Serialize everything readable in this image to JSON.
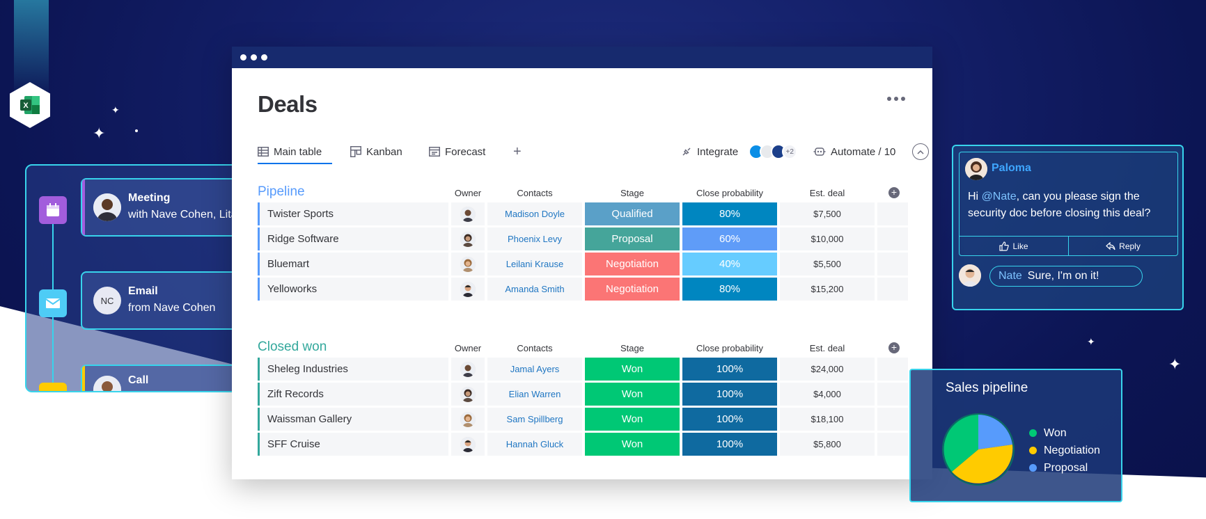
{
  "colors": {
    "accent_cyan": "#38d4ec",
    "brand_blue": "#0073ea",
    "pipeline": "#579bfc",
    "closed_won": "#33a89c",
    "stage_qualified": "#5aa0c8",
    "stage_proposal": "#45a59a",
    "stage_negotiation": "#fb7575",
    "stage_won": "#00c875",
    "prob_80": "#0086c0",
    "prob_60": "#5f9cf8",
    "prob_40": "#66ccff",
    "prob_100": "#0f6aa0"
  },
  "timeline": {
    "items": [
      {
        "type": "meeting",
        "icon": "calendar-icon",
        "title": "Meeting",
        "subtitle": "with Nave Cohen, Lita"
      },
      {
        "type": "email",
        "icon": "envelope-icon",
        "title": "Email",
        "subtitle": "from Nave Cohen",
        "initials": "NC"
      },
      {
        "type": "call",
        "icon": "phone-icon",
        "title": "Call",
        "subtitle": ""
      }
    ]
  },
  "board": {
    "title": "Deals",
    "tabs": [
      {
        "label": "Main table",
        "icon": "table-icon",
        "active": true
      },
      {
        "label": "Kanban",
        "icon": "kanban-icon"
      },
      {
        "label": "Forecast",
        "icon": "forecast-icon"
      }
    ],
    "add_tab": "+",
    "integrate": {
      "label": "Integrate",
      "more_count": "+2"
    },
    "automate": {
      "label": "Automate / 10"
    }
  },
  "columns": {
    "owner": "Owner",
    "contacts": "Contacts",
    "stage": "Stage",
    "probability": "Close probability",
    "deal": "Est. deal"
  },
  "groups": [
    {
      "title": "Pipeline",
      "rows": [
        {
          "name": "Twister Sports",
          "contact": "Madison Doyle",
          "stage": "Qualified",
          "probability": "80%",
          "deal": "$7,500"
        },
        {
          "name": "Ridge Software",
          "contact": "Phoenix Levy",
          "stage": "Proposal",
          "probability": "60%",
          "deal": "$10,000"
        },
        {
          "name": "Bluemart",
          "contact": "Leilani Krause",
          "stage": "Negotiation",
          "probability": "40%",
          "deal": "$5,500"
        },
        {
          "name": "Yelloworks",
          "contact": "Amanda Smith",
          "stage": "Negotiation",
          "probability": "80%",
          "deal": "$15,200"
        }
      ]
    },
    {
      "title": "Closed won",
      "rows": [
        {
          "name": "Sheleg Industries",
          "contact": "Jamal Ayers",
          "stage": "Won",
          "probability": "100%",
          "deal": "$24,000"
        },
        {
          "name": "Zift Records",
          "contact": "Elian Warren",
          "stage": "Won",
          "probability": "100%",
          "deal": "$4,000"
        },
        {
          "name": "Waissman Gallery",
          "contact": "Sam Spillberg",
          "stage": "Won",
          "probability": "100%",
          "deal": "$18,100"
        },
        {
          "name": "SFF Cruise",
          "contact": "Hannah Gluck",
          "stage": "Won",
          "probability": "100%",
          "deal": "$5,800"
        }
      ]
    }
  ],
  "chat": {
    "author": "Paloma",
    "message_prefix": "Hi ",
    "mention": "@Nate",
    "message_rest": ", can you please sign the security doc before closing this deal?",
    "like_label": "Like",
    "reply_label": "Reply",
    "reply": {
      "author": "Nate",
      "text": "Sure, I'm on it!"
    }
  },
  "sales_pipeline": {
    "title": "Sales pipeline",
    "legend": [
      {
        "label": "Won",
        "color": "#00c875"
      },
      {
        "label": "Negotiation",
        "color": "#ffcb00"
      },
      {
        "label": "Proposal",
        "color": "#579bfc"
      }
    ]
  }
}
